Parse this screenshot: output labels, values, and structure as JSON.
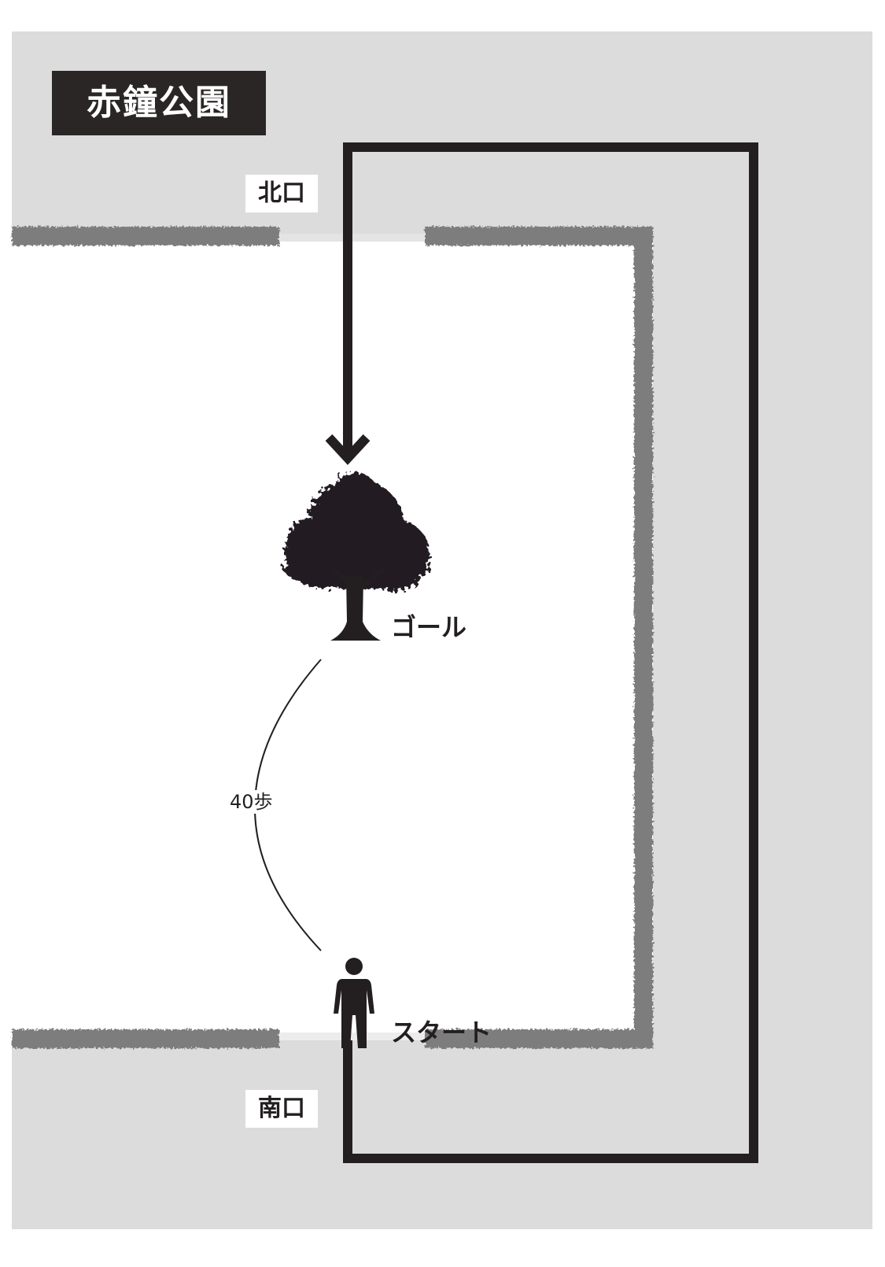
{
  "map": {
    "title": "赤鐘公園",
    "gates": {
      "north": "北口",
      "south": "南口"
    },
    "goal": {
      "label": "ゴール",
      "icon": "tree-icon"
    },
    "start": {
      "label": "スタート",
      "icon": "person-icon"
    },
    "distance": "40歩",
    "colors": {
      "street": "#dcdcdd",
      "park": "#ffffff",
      "hedge": "#7d7d7d",
      "route": "#231f20",
      "title_background": "#2a2626"
    }
  }
}
